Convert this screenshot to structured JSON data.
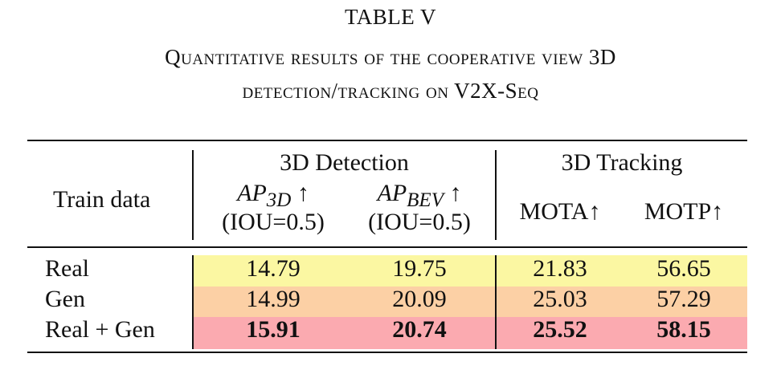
{
  "caption": {
    "number": "TABLE V",
    "line1": "Quantitative results of the cooperative view 3D",
    "line2": "detection/tracking on V2X-Seq"
  },
  "header": {
    "train_data": "Train data",
    "group_detection": "3D Detection",
    "group_tracking": "3D Tracking",
    "ap3d": {
      "base": "AP",
      "sub": "3D",
      "arrow": "↑",
      "note": "(IOU=0.5)"
    },
    "apbev": {
      "base": "AP",
      "sub": "BEV",
      "arrow": "↑",
      "note": "(IOU=0.5)"
    },
    "mota": "MOTA↑",
    "motp": "MOTP↑"
  },
  "rows": [
    {
      "label": "Real",
      "values": [
        "14.79",
        "19.75",
        "21.83",
        "56.65"
      ],
      "bold": false,
      "color": "#fbf7a2"
    },
    {
      "label": "Gen",
      "values": [
        "14.99",
        "20.09",
        "25.03",
        "57.29"
      ],
      "bold": false,
      "color": "#fcd0a5"
    },
    {
      "label": "Real + Gen",
      "values": [
        "15.91",
        "20.74",
        "25.52",
        "58.15"
      ],
      "bold": true,
      "color": "#fbaab0"
    }
  ]
}
